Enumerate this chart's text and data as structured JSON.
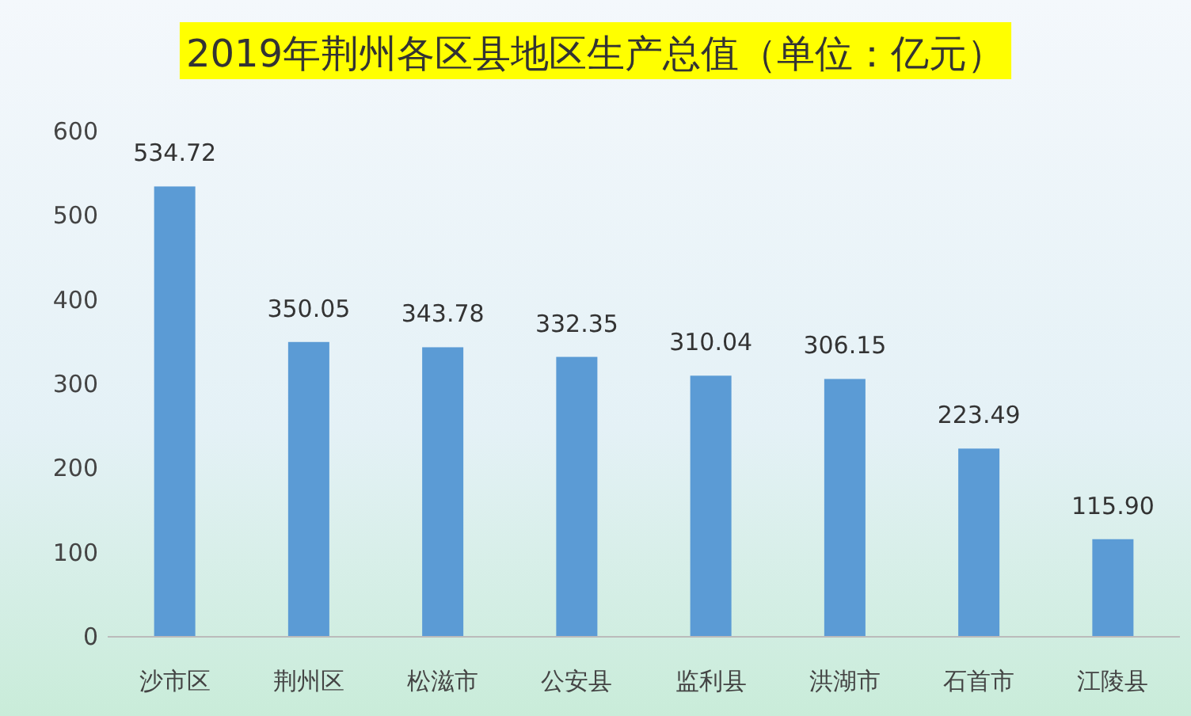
{
  "chart_data": {
    "type": "bar",
    "title": "2019年荆州各区县地区生产总值（单位：亿元）",
    "categories": [
      "沙市区",
      "荆州区",
      "松滋市",
      "公安县",
      "监利县",
      "洪湖市",
      "石首市",
      "江陵县"
    ],
    "values": [
      534.72,
      350.05,
      343.78,
      332.35,
      310.04,
      306.15,
      223.49,
      115.9
    ],
    "value_labels": [
      "534.72",
      "350.05",
      "343.78",
      "332.35",
      "310.04",
      "306.15",
      "223.49",
      "115.90"
    ],
    "color": "#5b9bd5",
    "ylim": [
      0,
      600
    ],
    "yticks": [
      0,
      100,
      200,
      300,
      400,
      500,
      600
    ],
    "grid": false
  }
}
